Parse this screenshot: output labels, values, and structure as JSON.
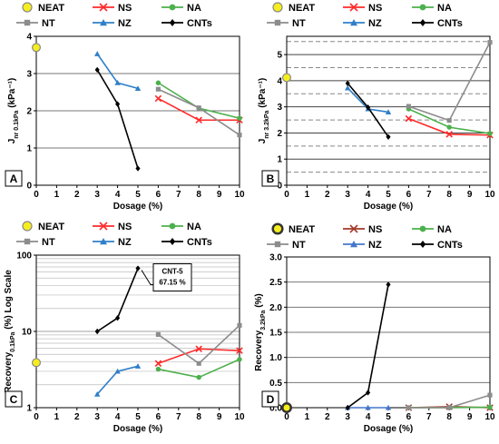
{
  "chart_data": [
    {
      "id": "A",
      "type": "line",
      "panel_label": "A",
      "xlabel": "Dosage (%)",
      "ylabel_main": "J",
      "ylabel_sub": "nr 0.1kPa",
      "ylabel_unit": " (kPa⁻¹)",
      "xlim": [
        0,
        10
      ],
      "ylim": [
        0,
        4
      ],
      "xticks": [
        0,
        1,
        2,
        3,
        4,
        5,
        6,
        7,
        8,
        9,
        10
      ],
      "yticks": [
        0,
        1,
        2,
        3,
        4
      ],
      "scale": "linear",
      "grid": "solid",
      "legend": [
        "NEAT",
        "NS",
        "NA",
        "NT",
        "NZ",
        "CNTs"
      ],
      "series": [
        {
          "name": "NEAT",
          "x": [
            0
          ],
          "y": [
            3.7
          ]
        },
        {
          "name": "NS",
          "x": [
            6,
            8,
            10
          ],
          "y": [
            2.33,
            1.75,
            1.75
          ]
        },
        {
          "name": "NA",
          "x": [
            6,
            8,
            10
          ],
          "y": [
            2.75,
            2.07,
            1.8
          ]
        },
        {
          "name": "NT",
          "x": [
            6,
            8,
            10
          ],
          "y": [
            2.58,
            2.08,
            1.35
          ]
        },
        {
          "name": "NZ",
          "x": [
            3,
            4,
            5
          ],
          "y": [
            3.53,
            2.75,
            2.6
          ]
        },
        {
          "name": "CNTs",
          "x": [
            3,
            4,
            5
          ],
          "y": [
            3.1,
            2.18,
            0.45
          ]
        }
      ]
    },
    {
      "id": "B",
      "type": "line",
      "panel_label": "B",
      "xlabel": "Dosage (%)",
      "ylabel_main": "J",
      "ylabel_sub": "nr 3.2kPa",
      "ylabel_unit": " (kPa⁻¹)",
      "xlim": [
        0,
        10
      ],
      "ylim": [
        0,
        5.7
      ],
      "xticks": [
        0,
        1,
        2,
        3,
        4,
        5,
        6,
        7,
        8,
        9,
        10
      ],
      "yticks": [
        0,
        1,
        2,
        3,
        4,
        5
      ],
      "scale": "linear",
      "grid": "dashed",
      "legend": [
        "NEAT",
        "NS",
        "NA",
        "NT",
        "NZ",
        "CNTs"
      ],
      "series": [
        {
          "name": "NEAT",
          "x": [
            0
          ],
          "y": [
            4.12
          ]
        },
        {
          "name": "NS",
          "x": [
            6,
            8,
            10
          ],
          "y": [
            2.55,
            1.95,
            1.92
          ]
        },
        {
          "name": "NA",
          "x": [
            6,
            8,
            10
          ],
          "y": [
            2.92,
            2.22,
            1.98
          ]
        },
        {
          "name": "NT",
          "x": [
            6,
            8,
            10
          ],
          "y": [
            3.02,
            2.48,
            5.47
          ]
        },
        {
          "name": "NZ",
          "x": [
            3,
            4,
            5
          ],
          "y": [
            3.72,
            2.92,
            2.8
          ]
        },
        {
          "name": "CNTs",
          "x": [
            3,
            4,
            5
          ],
          "y": [
            3.9,
            2.98,
            1.85
          ]
        }
      ]
    },
    {
      "id": "C",
      "type": "line",
      "panel_label": "C",
      "xlabel": "Dosage (%)",
      "ylabel_main": "Recovery",
      "ylabel_sub": "0.1kPa",
      "ylabel_unit": " (%) Log Scale",
      "xlim": [
        0,
        10
      ],
      "ylim": [
        1,
        100
      ],
      "xticks": [
        0,
        1,
        2,
        3,
        4,
        5,
        6,
        7,
        8,
        9,
        10
      ],
      "yticks": [
        1,
        10,
        100
      ],
      "scale": "log",
      "grid": "log",
      "legend": [
        "NEAT",
        "NS",
        "NA",
        "NT",
        "NZ",
        "CNTs"
      ],
      "annotation": {
        "line1": "CNT-5",
        "line2": "67.15 %",
        "x": 5,
        "y": 67.15
      },
      "series": [
        {
          "name": "NEAT",
          "x": [
            0
          ],
          "y": [
            3.9
          ]
        },
        {
          "name": "NS",
          "x": [
            6,
            8,
            10
          ],
          "y": [
            3.8,
            5.9,
            5.6
          ]
        },
        {
          "name": "NA",
          "x": [
            6,
            8,
            10
          ],
          "y": [
            3.2,
            2.5,
            4.3
          ]
        },
        {
          "name": "NT",
          "x": [
            6,
            8,
            10
          ],
          "y": [
            9.1,
            3.8,
            12
          ]
        },
        {
          "name": "NZ",
          "x": [
            3,
            4,
            5
          ],
          "y": [
            1.5,
            3.0,
            3.5
          ]
        },
        {
          "name": "CNTs",
          "x": [
            3,
            4,
            5
          ],
          "y": [
            10,
            15,
            67.15
          ]
        }
      ]
    },
    {
      "id": "D",
      "type": "line",
      "panel_label": "D",
      "xlabel": "Dosage (%)",
      "ylabel_main": "Recovery",
      "ylabel_sub": "3.2kPa",
      "ylabel_unit": " (%)",
      "xlim": [
        0,
        10
      ],
      "ylim": [
        0,
        3
      ],
      "xticks": [
        0,
        1,
        2,
        3,
        4,
        5,
        6,
        7,
        8,
        9,
        10
      ],
      "yticks": [
        0.0,
        0.5,
        1.0,
        1.5,
        2.0,
        2.5,
        3.0
      ],
      "scale": "linear",
      "grid": "solid",
      "legend": [
        "NEAT",
        "NS",
        "NA",
        "NT",
        "NZ",
        "CNTs"
      ],
      "series": [
        {
          "name": "NEAT",
          "x": [
            0
          ],
          "y": [
            0
          ]
        },
        {
          "name": "NS",
          "x": [
            6,
            8,
            10
          ],
          "y": [
            0,
            0.02,
            0
          ]
        },
        {
          "name": "NA",
          "x": [
            6,
            8,
            10
          ],
          "y": [
            0,
            0,
            0.01
          ]
        },
        {
          "name": "NT",
          "x": [
            6,
            8,
            10
          ],
          "y": [
            0,
            0,
            0.25
          ]
        },
        {
          "name": "NZ",
          "x": [
            3,
            4,
            5
          ],
          "y": [
            0,
            0,
            0
          ]
        },
        {
          "name": "CNTs",
          "x": [
            3,
            4,
            5
          ],
          "y": [
            0,
            0.3,
            2.45
          ]
        }
      ]
    }
  ]
}
